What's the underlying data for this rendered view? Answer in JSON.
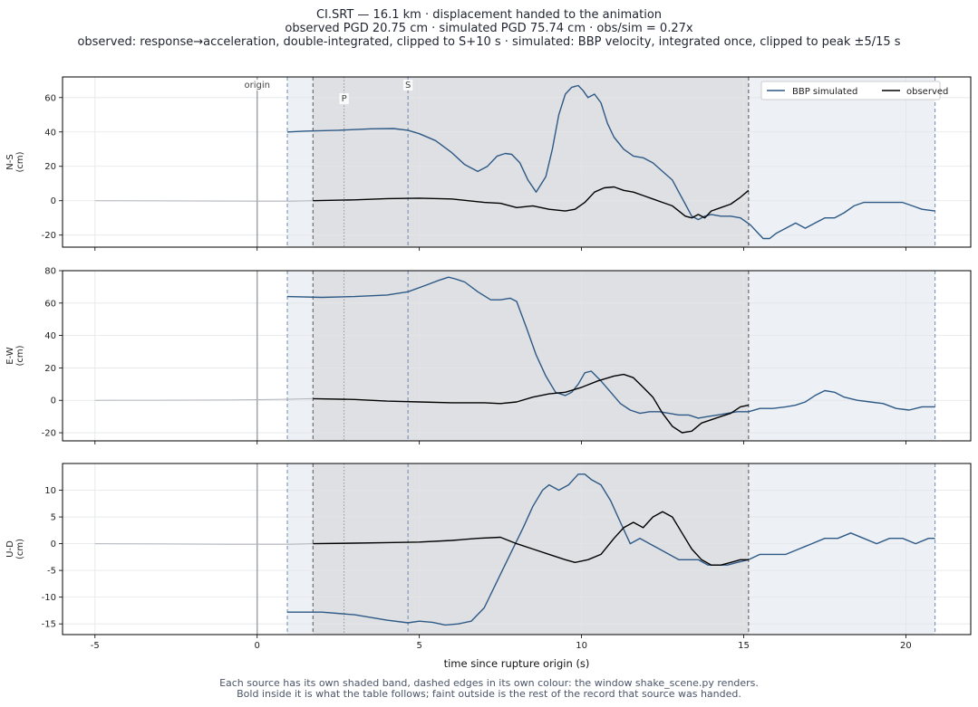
{
  "header": {
    "line1": "CI.SRT  —  16.1 km   ·   displacement handed to the animation",
    "line2": "observed PGD 20.75 cm   ·   simulated PGD 75.74 cm   ·   obs/sim = 0.27x",
    "line3": "observed: response→acceleration, double-integrated, clipped to S+10 s   ·   simulated: BBP velocity, integrated once, clipped to peak ±5/15 s"
  },
  "footer": {
    "line1": "Each source has its own shaded band, dashed edges in its own colour: the window shake_scene.py renders.",
    "line2": "Bold inside it is what the table follows;   faint outside is the rest of the record that source was handed."
  },
  "chart_data": {
    "type": "line",
    "xlabel": "time since rupture origin (s)",
    "xlim": [
      -6,
      22
    ],
    "x_ticks": [
      -5,
      0,
      5,
      10,
      15,
      20
    ],
    "grid": true,
    "legend": {
      "placement": "top-right",
      "entries": [
        "BBP simulated",
        "observed"
      ]
    },
    "colors": {
      "simulated": "#2d5986",
      "observed": "#000000",
      "faint": "#b0b4ba",
      "sim_band": "#edf0f4",
      "obs_band": "#dfe0e3",
      "origin_line": "#a0a4aa",
      "sim_edge": "#7089b0",
      "obs_edge": "#555555"
    },
    "markers": [
      {
        "label": "origin",
        "x": 0
      },
      {
        "label": "P",
        "x": 2.68
      },
      {
        "label": "S",
        "x": 4.65
      }
    ],
    "windows": {
      "simulated": [
        0.93,
        20.9
      ],
      "observed": [
        1.72,
        15.15
      ]
    },
    "panels": [
      {
        "ylabel": "N-S\n(cm)",
        "ylim": [
          -27,
          72
        ],
        "y_ticks": [
          -20,
          0,
          20,
          40,
          60
        ],
        "show_legend": true,
        "show_marker_labels": true,
        "simulated": {
          "name": "BBP simulated",
          "x": [
            0.93,
            1.5,
            2.5,
            3.5,
            4.2,
            4.65,
            5.0,
            5.5,
            6.0,
            6.4,
            6.8,
            7.1,
            7.4,
            7.65,
            7.85,
            8.1,
            8.35,
            8.6,
            8.9,
            9.1,
            9.3,
            9.5,
            9.7,
            9.9,
            10.05,
            10.2,
            10.4,
            10.6,
            10.8,
            11.0,
            11.3,
            11.6,
            11.9,
            12.2,
            12.5,
            12.8,
            13.0,
            13.2,
            13.4,
            13.6,
            13.8,
            14.0,
            14.3,
            14.6,
            14.9,
            15.2,
            15.4,
            15.6,
            15.8,
            16.0,
            16.3,
            16.6,
            16.9,
            17.2,
            17.5,
            17.8,
            18.1,
            18.4,
            18.7,
            19.0,
            19.3,
            19.6,
            19.9,
            20.2,
            20.5,
            20.9
          ],
          "values": [
            40,
            40.5,
            41,
            41.8,
            42,
            41,
            39,
            35,
            28,
            21,
            17,
            20,
            26,
            27.5,
            27,
            22,
            12,
            5,
            14,
            30,
            50,
            62,
            66,
            67,
            64,
            60,
            62,
            57,
            45,
            37,
            30,
            26,
            25,
            22,
            17,
            12,
            5,
            -2,
            -9,
            -11,
            -9,
            -8,
            -9,
            -9,
            -10,
            -14,
            -18,
            -22,
            -22,
            -19,
            -16,
            -13,
            -16,
            -13,
            -10,
            -10,
            -7,
            -3,
            -1,
            -1,
            -1,
            -1,
            -1,
            -3,
            -5,
            -6
          ]
        },
        "observed": {
          "name": "observed",
          "x": [
            1.72,
            3.0,
            4.0,
            5.0,
            6.0,
            7.0,
            7.5,
            8.0,
            8.5,
            9.0,
            9.5,
            9.8,
            10.1,
            10.4,
            10.7,
            11.0,
            11.3,
            11.6,
            11.9,
            12.2,
            12.5,
            12.8,
            13.0,
            13.2,
            13.4,
            13.6,
            13.8,
            14.0,
            14.3,
            14.6,
            14.9,
            15.15
          ],
          "values": [
            0,
            0.5,
            1.2,
            1.5,
            1,
            -1,
            -1.5,
            -4,
            -3,
            -5,
            -6,
            -5,
            -1,
            5,
            7.5,
            8,
            6,
            5,
            3,
            1,
            -1,
            -3,
            -6,
            -9,
            -10,
            -8,
            -10,
            -6,
            -4,
            -2,
            2,
            6
          ]
        },
        "faint_pre": {
          "x": [
            -5,
            -3,
            -1,
            0,
            1,
            1.72
          ],
          "values": [
            0,
            -0.1,
            -0.2,
            -0.3,
            -0.3,
            0
          ]
        }
      },
      {
        "ylabel": "E-W\n(cm)",
        "ylim": [
          -25,
          80
        ],
        "y_ticks": [
          -20,
          0,
          20,
          40,
          60,
          80
        ],
        "show_legend": false,
        "show_marker_labels": false,
        "simulated": {
          "name": "BBP simulated",
          "x": [
            0.93,
            2.0,
            3.0,
            4.0,
            4.65,
            5.2,
            5.6,
            5.9,
            6.1,
            6.4,
            6.8,
            7.2,
            7.5,
            7.8,
            8.0,
            8.3,
            8.6,
            8.9,
            9.2,
            9.5,
            9.7,
            9.9,
            10.1,
            10.3,
            10.6,
            10.9,
            11.2,
            11.5,
            11.8,
            12.1,
            12.4,
            12.7,
            13.0,
            13.3,
            13.6,
            13.9,
            14.2,
            14.5,
            14.8,
            15.15,
            15.5,
            15.9,
            16.3,
            16.6,
            16.9,
            17.2,
            17.5,
            17.8,
            18.1,
            18.5,
            18.9,
            19.3,
            19.7,
            20.1,
            20.5,
            20.9
          ],
          "values": [
            64,
            63.5,
            64,
            65,
            67,
            71,
            74,
            76,
            75,
            73,
            67,
            62,
            62,
            63,
            61,
            45,
            28,
            15,
            5,
            3,
            5,
            10,
            17,
            18,
            12,
            5,
            -2,
            -6,
            -8,
            -7,
            -7,
            -8,
            -9,
            -9,
            -11,
            -10,
            -9,
            -8,
            -7,
            -7,
            -5,
            -5,
            -4,
            -3,
            -1,
            3,
            6,
            5,
            2,
            0,
            -1,
            -2,
            -5,
            -6,
            -4,
            -4
          ]
        },
        "observed": {
          "name": "observed",
          "x": [
            1.72,
            3.0,
            4.0,
            5.0,
            6.0,
            7.0,
            7.5,
            8.0,
            8.5,
            9.0,
            9.5,
            10.0,
            10.5,
            11.0,
            11.3,
            11.6,
            11.9,
            12.2,
            12.5,
            12.8,
            13.1,
            13.4,
            13.7,
            14.0,
            14.3,
            14.6,
            14.9,
            15.15
          ],
          "values": [
            1,
            0.5,
            -0.5,
            -1,
            -1.5,
            -1.5,
            -2,
            -1,
            2,
            4,
            5,
            8,
            12,
            15,
            16,
            14,
            8,
            2,
            -8,
            -16,
            -20,
            -19,
            -14,
            -12,
            -10,
            -8,
            -4,
            -3
          ]
        },
        "faint_pre": {
          "x": [
            -5,
            -3,
            -1,
            0,
            1,
            1.72
          ],
          "values": [
            0,
            0.1,
            0.2,
            0.4,
            0.7,
            1
          ]
        }
      },
      {
        "ylabel": "U-D\n(cm)",
        "ylim": [
          -17,
          15
        ],
        "y_ticks": [
          -15,
          -10,
          -5,
          0,
          5,
          10
        ],
        "show_legend": false,
        "show_marker_labels": false,
        "simulated": {
          "name": "BBP simulated",
          "x": [
            0.93,
            2.0,
            3.0,
            4.0,
            4.65,
            5.0,
            5.4,
            5.8,
            6.2,
            6.6,
            7.0,
            7.4,
            7.8,
            8.2,
            8.5,
            8.8,
            9.0,
            9.3,
            9.6,
            9.9,
            10.1,
            10.3,
            10.6,
            10.9,
            11.2,
            11.5,
            11.8,
            12.1,
            12.4,
            12.7,
            13.0,
            13.3,
            13.6,
            13.9,
            14.2,
            14.5,
            14.8,
            15.15,
            15.5,
            15.9,
            16.3,
            16.7,
            17.1,
            17.5,
            17.9,
            18.3,
            18.7,
            19.1,
            19.5,
            19.9,
            20.3,
            20.7,
            20.9
          ],
          "values": [
            -12.8,
            -12.8,
            -13.3,
            -14.3,
            -14.8,
            -14.5,
            -14.7,
            -15.2,
            -15.0,
            -14.5,
            -12,
            -7,
            -2,
            3,
            7,
            10,
            11,
            10,
            11,
            13,
            13,
            12,
            11,
            8,
            4,
            0,
            1,
            0,
            -1,
            -2,
            -3,
            -3,
            -3,
            -4,
            -4,
            -4,
            -3.5,
            -3,
            -2,
            -2,
            -2,
            -1,
            0,
            1,
            1,
            2,
            1,
            0,
            1,
            1,
            0,
            1,
            1
          ]
        },
        "observed": {
          "name": "observed",
          "x": [
            1.72,
            3.0,
            4.0,
            5.0,
            6.0,
            6.8,
            7.5,
            8.0,
            8.5,
            9.0,
            9.5,
            9.8,
            10.2,
            10.6,
            11.0,
            11.3,
            11.6,
            11.9,
            12.2,
            12.5,
            12.8,
            13.1,
            13.4,
            13.7,
            14.0,
            14.3,
            14.6,
            14.9,
            15.15
          ],
          "values": [
            0,
            0.1,
            0.2,
            0.3,
            0.6,
            1,
            1.2,
            0,
            -1,
            -2,
            -3,
            -3.5,
            -3,
            -2,
            1,
            3,
            4,
            3,
            5,
            6,
            5,
            2,
            -1,
            -3,
            -4,
            -4,
            -3.5,
            -3,
            -3
          ]
        },
        "faint_pre": {
          "x": [
            -5,
            -3,
            -1,
            0,
            1,
            1.72
          ],
          "values": [
            0,
            -0.05,
            -0.1,
            -0.1,
            -0.1,
            0
          ]
        }
      }
    ]
  }
}
